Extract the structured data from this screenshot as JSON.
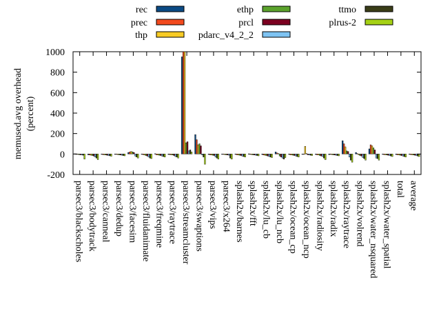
{
  "chart_data": {
    "type": "bar",
    "ylabel": "memused.avg overhead",
    "ylabel2": "(percent)",
    "ylim": [
      -200,
      1000
    ],
    "yticks": [
      "-200",
      "0",
      "200",
      "400",
      "600",
      "800",
      "1000"
    ],
    "legend_position": "top",
    "categories": [
      "parsec3/blackscholes",
      "parsec3/bodytrack",
      "parsec3/canneal",
      "parsec3/dedup",
      "parsec3/facesim",
      "parsec3/fluidanimate",
      "parsec3/freqmine",
      "parsec3/raytrace",
      "parsec3/streamcluster",
      "parsec3/swaptions",
      "parsec3/vips",
      "parsec3/x264",
      "splash2x/barnes",
      "splash2x/fft",
      "splash2x/lu_cb",
      "splash2x/lu_ncb",
      "splash2x/ocean_cp",
      "splash2x/ocean_ncp",
      "splash2x/radiosity",
      "splash2x/radix",
      "splash2x/raytrace",
      "splash2x/volrend",
      "splash2x/water_nsquared",
      "splash2x/water_spatial",
      "total",
      "average"
    ],
    "series": [
      {
        "name": "rec",
        "color": "#0b4a84",
        "values": [
          2,
          -8,
          -4,
          -3,
          15,
          -2,
          3,
          -5,
          950,
          190,
          -5,
          -2,
          -3,
          2,
          -5,
          20,
          -4,
          -3,
          -5,
          -6,
          130,
          15,
          50,
          -3,
          -5,
          -3
        ]
      },
      {
        "name": "prec",
        "color": "#f24a1e",
        "values": [
          -3,
          -10,
          -6,
          -4,
          20,
          -6,
          -8,
          -6,
          1000,
          140,
          -8,
          -4,
          -8,
          -4,
          -10,
          10,
          -8,
          -2,
          -8,
          -4,
          100,
          5,
          90,
          -6,
          -8,
          -6
        ]
      },
      {
        "name": "thp",
        "color": "#f7cb25",
        "values": [
          -4,
          -12,
          -8,
          -6,
          25,
          -10,
          -10,
          -8,
          1000,
          90,
          -10,
          -6,
          -10,
          -6,
          -12,
          5,
          -10,
          75,
          -10,
          -6,
          70,
          -8,
          80,
          -8,
          -10,
          -8
        ]
      },
      {
        "name": "ethp",
        "color": "#5ba32c",
        "values": [
          -6,
          -15,
          -10,
          -8,
          20,
          -15,
          -12,
          -10,
          110,
          100,
          -12,
          -8,
          -12,
          -8,
          -15,
          -20,
          -12,
          5,
          -15,
          -8,
          30,
          -15,
          60,
          -10,
          -12,
          -10
        ]
      },
      {
        "name": "prcl",
        "color": "#7c0021",
        "values": [
          -8,
          -20,
          -12,
          -10,
          15,
          -20,
          -15,
          -15,
          120,
          80,
          -15,
          -10,
          -15,
          -10,
          -20,
          -30,
          -15,
          -8,
          -20,
          -10,
          25,
          -20,
          40,
          -12,
          -15,
          -12
        ]
      },
      {
        "name": "pdarc_v4_2_2",
        "color": "#7ec3f2",
        "values": [
          -10,
          -30,
          -15,
          -12,
          -20,
          -30,
          -20,
          -25,
          30,
          -10,
          -30,
          -12,
          -20,
          -12,
          -25,
          -40,
          -20,
          -10,
          -25,
          -12,
          -30,
          -35,
          -40,
          -15,
          -20,
          -15
        ]
      },
      {
        "name": "ttmo",
        "color": "#3a3d18",
        "values": [
          -12,
          -40,
          -18,
          -15,
          -30,
          -40,
          -25,
          -30,
          40,
          -30,
          -40,
          -40,
          -25,
          -15,
          -30,
          -50,
          -25,
          -12,
          -40,
          -15,
          -60,
          -45,
          -45,
          -20,
          -25,
          -20
        ]
      },
      {
        "name": "plrus-2",
        "color": "#a5d115",
        "values": [
          -50,
          -55,
          -22,
          -18,
          -40,
          -45,
          -30,
          -40,
          20,
          -100,
          -50,
          -50,
          -30,
          -18,
          -35,
          -35,
          -30,
          -15,
          -55,
          -18,
          -80,
          -60,
          -60,
          -25,
          -30,
          -25
        ]
      }
    ]
  }
}
